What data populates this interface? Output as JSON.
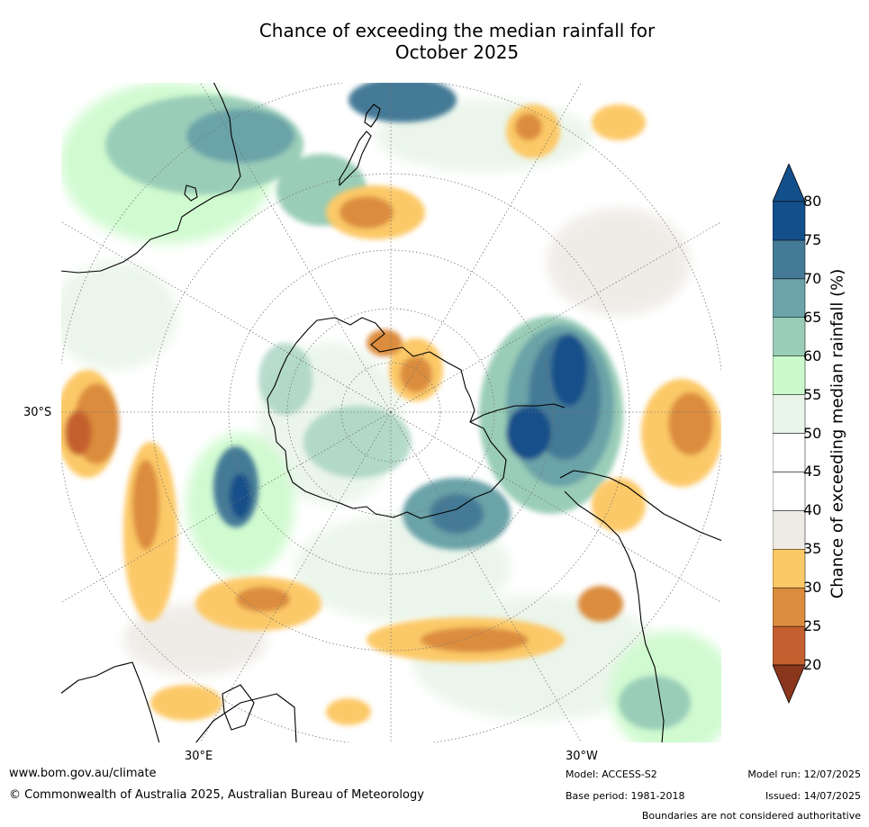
{
  "title_line1": "Chance of exceeding the median rainfall for",
  "title_line2": "October 2025",
  "axis": {
    "lat_label": "30°S",
    "lon_label_left": "30°E",
    "lon_label_right": "30°W"
  },
  "colorbar": {
    "label": "Chance of exceeding median rainfall (%)",
    "ticks": [
      "20",
      "25",
      "30",
      "35",
      "40",
      "45",
      "50",
      "55",
      "60",
      "65",
      "70",
      "75",
      "80"
    ],
    "colors": [
      "#a9442a",
      "#c4602f",
      "#db8c3e",
      "#fcc967",
      "#eeebe6",
      "#ffffff",
      "#ffffff",
      "#e9f5e9",
      "#ccfacc",
      "#9acdb8",
      "#6ba3a8",
      "#447a96",
      "#134f8a"
    ],
    "under_color": "#8a361c",
    "over_color": "#134f8a"
  },
  "footer": {
    "url": "www.bom.gov.au/climate",
    "copyright": "© Commonwealth of Australia 2025, Australian Bureau of Meteorology",
    "model": "Model: ACCESS-S2",
    "base_period": "Base period: 1981-2018",
    "model_run": "Model run: 12/07/2025",
    "issued": "Issued: 14/07/2025",
    "disclaimer": "Boundaries are not considered authoritative"
  }
}
